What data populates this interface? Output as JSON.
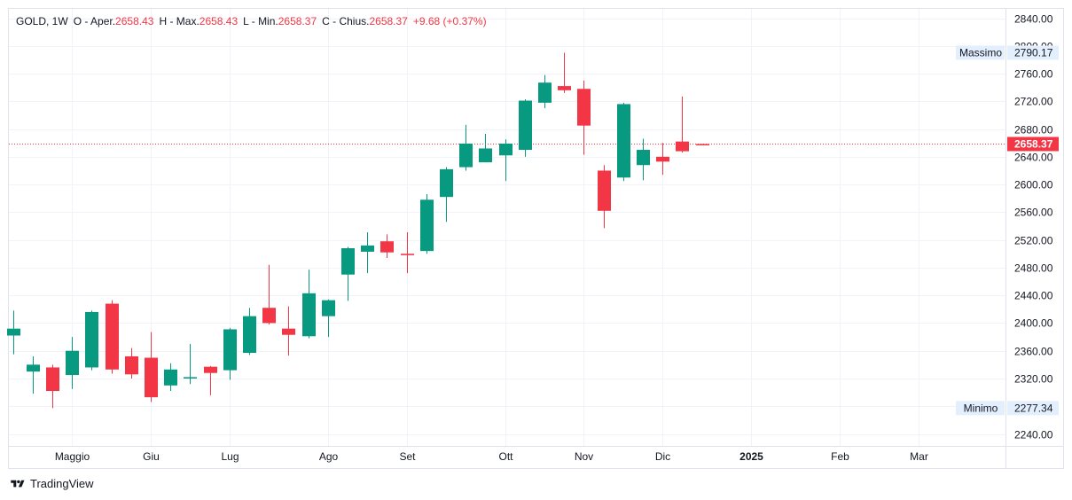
{
  "header": {
    "symbol": "GOLD, 1W",
    "open_label": "O - Aper.",
    "open": "2658.43",
    "high_label": "H - Max.",
    "high": "2658.43",
    "low_label": "L - Min.",
    "low": "2658.37",
    "close_label": "C - Chius.",
    "close": "2658.37",
    "change": "+9.68 (+0.37%)"
  },
  "price_labels": {
    "max_label": "Massimo",
    "max_value": "2790.17",
    "min_label": "Minimo",
    "min_value": "2277.34",
    "last_value": "2658.37"
  },
  "footer": {
    "brand": "TradingView"
  },
  "colors": {
    "up": "#089981",
    "down": "#f23645",
    "grid": "#f0f3fa",
    "axis_text": "#131722"
  },
  "chart_data": {
    "type": "candlestick",
    "interval": "1W",
    "last_price": 2658.37,
    "y_ticks": [
      2240,
      2280,
      2320,
      2360,
      2400,
      2440,
      2480,
      2520,
      2560,
      2600,
      2640,
      2680,
      2720,
      2760,
      2800,
      2840
    ],
    "y_tick_labels": [
      "2240.00",
      "2280.00",
      "2320.00",
      "2360.00",
      "2400.00",
      "2440.00",
      "2480.00",
      "2520.00",
      "2560.00",
      "2600.00",
      "2640.00",
      "2680.00",
      "2720.00",
      "2760.00",
      "2800.00",
      "2840.00"
    ],
    "ylim": [
      2225,
      2850
    ],
    "x_labels": [
      {
        "label": "Maggio",
        "index": 3
      },
      {
        "label": "Giu",
        "index": 7
      },
      {
        "label": "Lug",
        "index": 11
      },
      {
        "label": "Ago",
        "index": 16
      },
      {
        "label": "Set",
        "index": 20
      },
      {
        "label": "Ott",
        "index": 25
      },
      {
        "label": "Nov",
        "index": 29
      },
      {
        "label": "Dic",
        "index": 33
      },
      {
        "label": "2025",
        "index": 37.5
      },
      {
        "label": "Feb",
        "index": 42
      },
      {
        "label": "Mar",
        "index": 46
      }
    ],
    "candles": [
      {
        "o": 2382,
        "h": 2418,
        "l": 2355,
        "c": 2392
      },
      {
        "o": 2330,
        "h": 2352,
        "l": 2298,
        "c": 2340
      },
      {
        "o": 2336,
        "h": 2340,
        "l": 2277.34,
        "c": 2302
      },
      {
        "o": 2325,
        "h": 2380,
        "l": 2305,
        "c": 2360
      },
      {
        "o": 2336,
        "h": 2418,
        "l": 2332,
        "c": 2416
      },
      {
        "o": 2428,
        "h": 2433,
        "l": 2327,
        "c": 2333
      },
      {
        "o": 2352,
        "h": 2364,
        "l": 2320,
        "c": 2326
      },
      {
        "o": 2350,
        "h": 2387,
        "l": 2286,
        "c": 2293
      },
      {
        "o": 2310,
        "h": 2342,
        "l": 2302,
        "c": 2333
      },
      {
        "o": 2320,
        "h": 2370,
        "l": 2312,
        "c": 2322
      },
      {
        "o": 2337,
        "h": 2338,
        "l": 2296,
        "c": 2328
      },
      {
        "o": 2332,
        "h": 2393,
        "l": 2318,
        "c": 2391
      },
      {
        "o": 2357,
        "h": 2422,
        "l": 2354,
        "c": 2410
      },
      {
        "o": 2422,
        "h": 2484,
        "l": 2398,
        "c": 2400
      },
      {
        "o": 2392,
        "h": 2424,
        "l": 2353,
        "c": 2383
      },
      {
        "o": 2381,
        "h": 2477,
        "l": 2378,
        "c": 2443
      },
      {
        "o": 2410,
        "h": 2434,
        "l": 2380,
        "c": 2433
      },
      {
        "o": 2470,
        "h": 2510,
        "l": 2432,
        "c": 2508
      },
      {
        "o": 2503,
        "h": 2531,
        "l": 2472,
        "c": 2512
      },
      {
        "o": 2518,
        "h": 2528,
        "l": 2494,
        "c": 2502
      },
      {
        "o": 2500,
        "h": 2531,
        "l": 2472,
        "c": 2498
      },
      {
        "o": 2504,
        "h": 2586,
        "l": 2500,
        "c": 2578
      },
      {
        "o": 2582,
        "h": 2625,
        "l": 2546,
        "c": 2622
      },
      {
        "o": 2625,
        "h": 2686,
        "l": 2620,
        "c": 2659
      },
      {
        "o": 2632,
        "h": 2673,
        "l": 2632,
        "c": 2652
      },
      {
        "o": 2642,
        "h": 2665,
        "l": 2605,
        "c": 2659
      },
      {
        "o": 2650,
        "h": 2723,
        "l": 2640,
        "c": 2721
      },
      {
        "o": 2718,
        "h": 2758,
        "l": 2710,
        "c": 2747
      },
      {
        "o": 2742,
        "h": 2790.17,
        "l": 2732,
        "c": 2736
      },
      {
        "o": 2738,
        "h": 2750,
        "l": 2643,
        "c": 2685
      },
      {
        "o": 2620,
        "h": 2628,
        "l": 2537,
        "c": 2562
      },
      {
        "o": 2610,
        "h": 2718,
        "l": 2605,
        "c": 2716
      },
      {
        "o": 2628,
        "h": 2666,
        "l": 2606,
        "c": 2650
      },
      {
        "o": 2640,
        "h": 2660,
        "l": 2614,
        "c": 2633
      },
      {
        "o": 2662,
        "h": 2727,
        "l": 2646,
        "c": 2648
      },
      {
        "o": 2658.43,
        "h": 2658.43,
        "l": 2658.37,
        "c": 2658.37
      }
    ]
  }
}
